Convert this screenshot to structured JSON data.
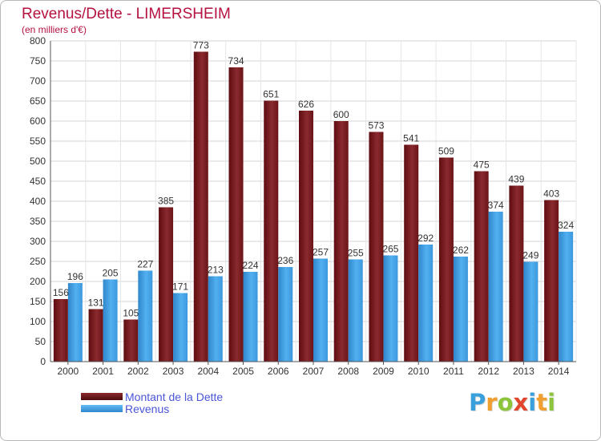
{
  "header": {
    "title": "Revenus/Dette - LIMERSHEIM",
    "subtitle": "(en milliers d'€)"
  },
  "chart_data": {
    "type": "bar",
    "title": "Revenus/Dette - LIMERSHEIM",
    "subtitle": "(en milliers d'€)",
    "xlabel": "",
    "ylabel": "",
    "ylim": [
      0,
      800
    ],
    "yticks": [
      0,
      50,
      100,
      150,
      200,
      250,
      300,
      350,
      400,
      450,
      500,
      550,
      600,
      650,
      700,
      750,
      800
    ],
    "grid": true,
    "legend_position": "bottom-left",
    "categories": [
      "2000",
      "2001",
      "2002",
      "2003",
      "2004",
      "2005",
      "2006",
      "2007",
      "2008",
      "2009",
      "2010",
      "2011",
      "2012",
      "2013",
      "2014"
    ],
    "series": [
      {
        "name": "Montant de la Dette",
        "color": "#7a1e22",
        "values": [
          156,
          131,
          105,
          385,
          773,
          734,
          651,
          626,
          600,
          573,
          541,
          509,
          475,
          439,
          403
        ]
      },
      {
        "name": "Revenus",
        "color": "#3f9ee6",
        "values": [
          196,
          205,
          227,
          171,
          213,
          224,
          236,
          257,
          255,
          265,
          292,
          262,
          374,
          249,
          324
        ]
      }
    ]
  },
  "legend": {
    "items": [
      {
        "label": "Montant de la Dette",
        "color": "#6b1012"
      },
      {
        "label": "Revenus",
        "color": "#3f9ee6"
      }
    ]
  },
  "brand": {
    "letters": [
      {
        "char": "P",
        "color": "#3aa0dc"
      },
      {
        "char": "r",
        "color": "#f0a030"
      },
      {
        "char": "o",
        "color": "#8cc43c"
      },
      {
        "char": "x",
        "color": "#e0462c"
      },
      {
        "char": "i",
        "color": "#3aa0dc"
      },
      {
        "char": "t",
        "color": "#f0a030"
      },
      {
        "char": "i",
        "color": "#8cc43c"
      }
    ]
  }
}
